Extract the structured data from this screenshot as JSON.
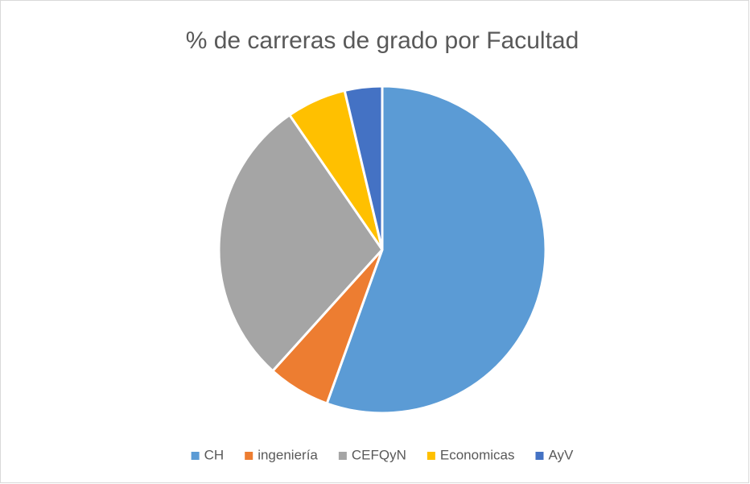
{
  "chart_data": {
    "type": "pie",
    "title": "% de carreras de grado por Facultad",
    "categories": [
      "CH",
      "ingeniería",
      "CEFQyN",
      "Economicas",
      "AyV"
    ],
    "values": [
      55.5,
      6.2,
      28.7,
      5.9,
      3.7
    ],
    "colors": [
      "#5b9bd5",
      "#ed7d31",
      "#a5a5a5",
      "#ffc000",
      "#4472c4"
    ],
    "legend": "bottom"
  }
}
